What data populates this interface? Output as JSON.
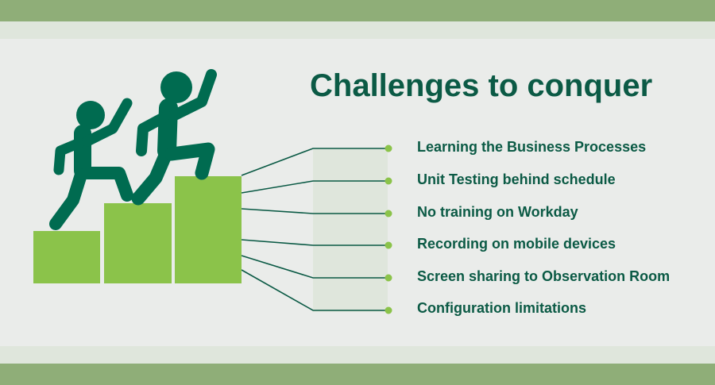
{
  "title": "Challenges to conquer",
  "challenges": [
    "Learning the Business Processes",
    "Unit Testing behind schedule",
    "No training on Workday",
    "Recording on mobile devices",
    "Screen sharing to Observation Room",
    "Configuration limitations"
  ],
  "colors": {
    "title": "#0b5a45",
    "steps": "#8bc34a",
    "figures": "#006b50",
    "bands": "#8fae78"
  },
  "icons": [
    "climbing-person-icon",
    "climbing-person-icon",
    "podium-steps-icon"
  ]
}
